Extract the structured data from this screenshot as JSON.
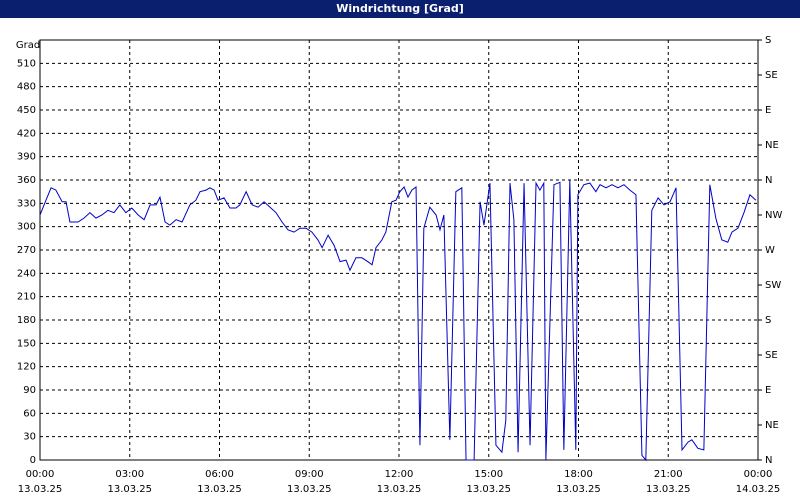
{
  "chart_data": {
    "type": "line",
    "title": "Windrichtung [Grad]",
    "y_label": "Grad",
    "color": "#0000c8",
    "grid": true,
    "xlim": [
      0,
      24
    ],
    "xticks": [
      {
        "value": 0,
        "label": [
          "00:00",
          "13.03.25"
        ]
      },
      {
        "value": 3,
        "label": [
          "03:00",
          "13.03.25"
        ]
      },
      {
        "value": 6,
        "label": [
          "06:00",
          "13.03.25"
        ]
      },
      {
        "value": 9,
        "label": [
          "09:00",
          "13.03.25"
        ]
      },
      {
        "value": 12,
        "label": [
          "12:00",
          "13.03.25"
        ]
      },
      {
        "value": 15,
        "label": [
          "15:00",
          "13.03.25"
        ]
      },
      {
        "value": 18,
        "label": [
          "18:00",
          "13.03.25"
        ]
      },
      {
        "value": 21,
        "label": [
          "21:00",
          "13.03.25"
        ]
      },
      {
        "value": 24,
        "label": [
          "00:00",
          "14.03.25"
        ]
      }
    ],
    "ylim": [
      0,
      540
    ],
    "yticks": [
      0,
      30,
      60,
      90,
      120,
      150,
      180,
      210,
      240,
      270,
      300,
      330,
      360,
      390,
      420,
      450,
      480,
      510
    ],
    "y2lim": [
      0,
      540
    ],
    "y2ticks": [
      {
        "value": 0,
        "label": "N"
      },
      {
        "value": 45,
        "label": "NE"
      },
      {
        "value": 90,
        "label": "E"
      },
      {
        "value": 135,
        "label": "SE"
      },
      {
        "value": 180,
        "label": "S"
      },
      {
        "value": 225,
        "label": "SW"
      },
      {
        "value": 270,
        "label": "W"
      },
      {
        "value": 315,
        "label": "NW"
      },
      {
        "value": 360,
        "label": "N"
      },
      {
        "value": 405,
        "label": "NE"
      },
      {
        "value": 450,
        "label": "E"
      },
      {
        "value": 495,
        "label": "SE"
      },
      {
        "value": 540,
        "label": "S"
      }
    ],
    "x": [
      0,
      0.2,
      0.37,
      0.53,
      0.74,
      0.87,
      1.0,
      1.27,
      1.47,
      1.67,
      1.87,
      2.07,
      2.27,
      2.47,
      2.67,
      2.87,
      3.07,
      3.28,
      3.48,
      3.68,
      3.88,
      4.01,
      4.18,
      4.34,
      4.55,
      4.75,
      5.01,
      5.21,
      5.35,
      5.55,
      5.68,
      5.82,
      5.95,
      6.15,
      6.35,
      6.55,
      6.68,
      6.89,
      7.09,
      7.29,
      7.49,
      7.69,
      7.89,
      8.09,
      8.29,
      8.49,
      8.69,
      8.89,
      9.09,
      9.29,
      9.43,
      9.63,
      9.83,
      10.03,
      10.23,
      10.36,
      10.56,
      10.76,
      10.96,
      11.1,
      11.23,
      11.43,
      11.56,
      11.76,
      11.9,
      12.03,
      12.17,
      12.3,
      12.43,
      12.57,
      12.7,
      12.83,
      13.03,
      13.24,
      13.37,
      13.5,
      13.7,
      13.9,
      14.1,
      14.24,
      14.51,
      14.71,
      14.84,
      15.04,
      15.24,
      15.44,
      15.57,
      15.71,
      15.84,
      15.98,
      16.18,
      16.38,
      16.58,
      16.71,
      16.84,
      16.91,
      17.18,
      17.38,
      17.51,
      17.71,
      17.91,
      17.98,
      18.18,
      18.38,
      18.58,
      18.72,
      18.92,
      19.12,
      19.32,
      19.52,
      19.72,
      19.92,
      20.12,
      20.25,
      20.45,
      20.66,
      20.86,
      21.06,
      21.26,
      21.46,
      21.66,
      21.79,
      21.99,
      22.19,
      22.39,
      22.59,
      22.79,
      22.99,
      23.13,
      23.33,
      23.53,
      23.73,
      23.93
    ],
    "values": [
      315,
      334,
      350,
      347,
      332,
      332,
      306,
      306,
      311,
      318,
      311,
      315,
      321,
      318,
      328,
      318,
      324,
      315,
      309,
      328,
      328,
      338,
      306,
      302,
      309,
      306,
      328,
      334,
      345,
      347,
      350,
      347,
      334,
      337,
      324,
      324,
      328,
      345,
      328,
      325,
      332,
      325,
      318,
      306,
      296,
      293,
      298,
      298,
      293,
      283,
      273,
      289,
      276,
      255,
      257,
      244,
      260,
      260,
      255,
      251,
      273,
      283,
      293,
      332,
      334,
      345,
      351,
      338,
      347,
      351,
      19,
      298,
      325,
      315,
      296,
      315,
      26,
      345,
      350,
      0,
      0,
      332,
      302,
      356,
      19,
      10,
      51,
      356,
      309,
      10,
      356,
      19,
      356,
      347,
      356,
      0,
      354,
      357,
      13,
      360,
      13,
      341,
      354,
      356,
      345,
      354,
      350,
      354,
      350,
      354,
      347,
      341,
      6,
      0,
      321,
      337,
      328,
      332,
      350,
      13,
      23,
      26,
      15,
      13,
      354,
      311,
      283,
      280,
      293,
      298,
      318,
      341,
      334
    ]
  }
}
